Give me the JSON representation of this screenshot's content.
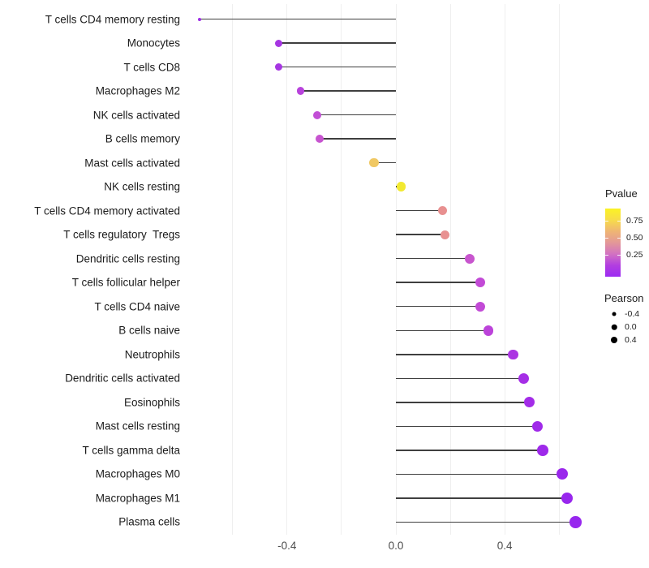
{
  "chart_data": {
    "type": "lollipop",
    "orientation": "horizontal",
    "title": "",
    "xlabel": "",
    "ylabel": "",
    "x_axis": {
      "tick_labels": [
        "-0.4",
        "0.0",
        "0.4"
      ],
      "tick_values": [
        -0.4,
        0.0,
        0.4
      ],
      "gridline_values": [
        -0.6,
        -0.4,
        -0.2,
        0.0,
        0.2,
        0.4,
        0.6
      ],
      "range": [
        -0.77,
        0.72
      ]
    },
    "points": [
      {
        "label": "T cells CD4 memory resting",
        "pearson": -0.72,
        "dot_color": "#9E2DE6",
        "dot_size": 4
      },
      {
        "label": "Monocytes",
        "pearson": -0.43,
        "dot_color": "#A636E2",
        "dot_size": 9
      },
      {
        "label": "T cells CD8",
        "pearson": -0.43,
        "dot_color": "#A636E2",
        "dot_size": 9
      },
      {
        "label": "Macrophages M2",
        "pearson": -0.35,
        "dot_color": "#B843DC",
        "dot_size": 9.5
      },
      {
        "label": "NK cells activated",
        "pearson": -0.29,
        "dot_color": "#C24FD6",
        "dot_size": 10
      },
      {
        "label": "B cells memory",
        "pearson": -0.28,
        "dot_color": "#C754D0",
        "dot_size": 10
      },
      {
        "label": "Mast cells activated",
        "pearson": -0.08,
        "dot_color": "#F0C864",
        "dot_size": 11.5
      },
      {
        "label": "NK cells resting",
        "pearson": 0.02,
        "dot_color": "#F2E930",
        "dot_size": 11.5
      },
      {
        "label": "T cells CD4 memory activated",
        "pearson": 0.17,
        "dot_color": "#E89090",
        "dot_size": 11
      },
      {
        "label": "T cells regulatory  Tregs",
        "pearson": 0.18,
        "dot_color": "#E89090",
        "dot_size": 11
      },
      {
        "label": "Dendritic cells resting",
        "pearson": 0.27,
        "dot_color": "#C855CE",
        "dot_size": 12
      },
      {
        "label": "T cells follicular helper",
        "pearson": 0.31,
        "dot_color": "#C24AD6",
        "dot_size": 12
      },
      {
        "label": "T cells CD4 naive",
        "pearson": 0.31,
        "dot_color": "#C24AD6",
        "dot_size": 12
      },
      {
        "label": "B cells naive",
        "pearson": 0.34,
        "dot_color": "#BC43DA",
        "dot_size": 12.5
      },
      {
        "label": "Neutrophils",
        "pearson": 0.43,
        "dot_color": "#AB35E2",
        "dot_size": 12.5
      },
      {
        "label": "Dendritic cells activated",
        "pearson": 0.47,
        "dot_color": "#A52EE6",
        "dot_size": 13
      },
      {
        "label": "Eosinophils",
        "pearson": 0.49,
        "dot_color": "#A32CE8",
        "dot_size": 13
      },
      {
        "label": "Mast cells resting",
        "pearson": 0.52,
        "dot_color": "#A02AE9",
        "dot_size": 13.5
      },
      {
        "label": "T cells gamma delta",
        "pearson": 0.54,
        "dot_color": "#9E29EA",
        "dot_size": 13.5
      },
      {
        "label": "Macrophages M0",
        "pearson": 0.61,
        "dot_color": "#9A27EC",
        "dot_size": 14
      },
      {
        "label": "Macrophages M1",
        "pearson": 0.63,
        "dot_color": "#9827ED",
        "dot_size": 14
      },
      {
        "label": "Plasma cells",
        "pearson": 0.66,
        "dot_color": "#9727EE",
        "dot_size": 14.5
      }
    ],
    "legend_position": "right"
  },
  "legend": {
    "pvalue": {
      "title": "Pvalue",
      "tick_labels": [
        "0.75",
        "0.50",
        "0.25"
      ],
      "gradient_top_to_bottom": [
        "#FBF324",
        "#F7DC4A",
        "#EFB573",
        "#E39898",
        "#D272C2",
        "#B23EE0",
        "#9C2BF2"
      ]
    },
    "pearson": {
      "title": "Pearson",
      "items": [
        {
          "label": "-0.4",
          "size": 5
        },
        {
          "label": "0.0",
          "size": 6.5
        },
        {
          "label": "0.4",
          "size": 8
        }
      ],
      "dot_color": "#000000"
    }
  },
  "colors": {
    "background": "#FFFFFF",
    "stem": "#3F3F3F",
    "grid": "#EFEFEF",
    "axis_text": "#4D4D4D",
    "category_text": "#1B1B1B"
  }
}
